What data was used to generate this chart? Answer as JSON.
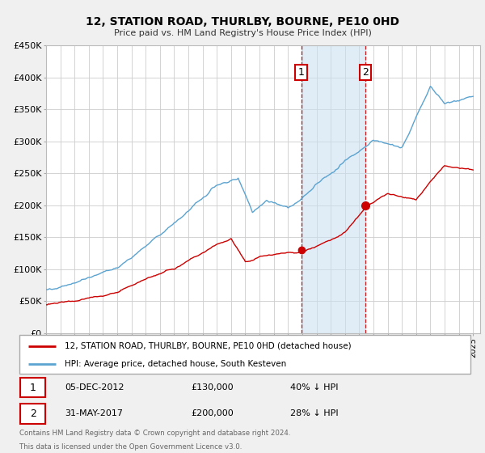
{
  "title": "12, STATION ROAD, THURLBY, BOURNE, PE10 0HD",
  "subtitle": "Price paid vs. HM Land Registry's House Price Index (HPI)",
  "ylim": [
    0,
    450000
  ],
  "yticks": [
    0,
    50000,
    100000,
    150000,
    200000,
    250000,
    300000,
    350000,
    400000,
    450000
  ],
  "ytick_labels": [
    "£0",
    "£50K",
    "£100K",
    "£150K",
    "£200K",
    "£250K",
    "£300K",
    "£350K",
    "£400K",
    "£450K"
  ],
  "xlim_start": 1995.0,
  "xlim_end": 2025.5,
  "hpi_color": "#5ba3d0",
  "price_color": "#cc0000",
  "shaded_color": "#cce0f0",
  "event1_x": 2012.92,
  "event1_y": 130000,
  "event2_x": 2017.42,
  "event2_y": 200000,
  "event1_label": "1",
  "event2_label": "2",
  "legend_line1": "12, STATION ROAD, THURLBY, BOURNE, PE10 0HD (detached house)",
  "legend_line2": "HPI: Average price, detached house, South Kesteven",
  "table_row1": [
    "1",
    "05-DEC-2012",
    "£130,000",
    "40% ↓ HPI"
  ],
  "table_row2": [
    "2",
    "31-MAY-2017",
    "£200,000",
    "28% ↓ HPI"
  ],
  "footnote1": "Contains HM Land Registry data © Crown copyright and database right 2024.",
  "footnote2": "This data is licensed under the Open Government Licence v3.0.",
  "background_color": "#f0f0f0",
  "plot_bg_color": "#ffffff",
  "grid_color": "#cccccc"
}
